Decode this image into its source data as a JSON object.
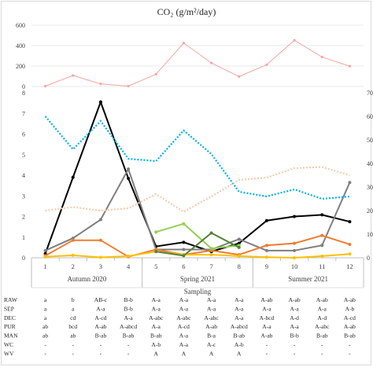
{
  "chart_data": [
    {
      "type": "line",
      "title": "CO₂ (g/m²/day)",
      "x": [
        1,
        2,
        3,
        4,
        5,
        6,
        7,
        8,
        9,
        10,
        11,
        12
      ],
      "ylim": [
        0,
        600
      ],
      "yticks": [
        0,
        200,
        400,
        600
      ],
      "grid": "horizontal",
      "series": [
        {
          "color": "#f4a6a0",
          "values": [
            3,
            107,
            25,
            3,
            120,
            425,
            230,
            97,
            213,
            452,
            288,
            198
          ]
        }
      ]
    },
    {
      "type": "line",
      "x": [
        1,
        2,
        3,
        4,
        5,
        6,
        7,
        8,
        9,
        10,
        11,
        12
      ],
      "xlabel": "Sampling",
      "xticks": [
        "1",
        "2",
        "3",
        "4",
        "5",
        "6",
        "7",
        "8",
        "9",
        "10",
        "11",
        "12"
      ],
      "groups": [
        "Autumn 2020",
        "Spring 2021",
        "Summer 2021"
      ],
      "ylim": [
        0,
        8
      ],
      "yticks": [
        0,
        1,
        2,
        3,
        4,
        5,
        6,
        7,
        8
      ],
      "y2lim": [
        0,
        70
      ],
      "y2ticks": [
        0,
        10,
        20,
        30,
        40,
        50,
        60,
        70
      ],
      "series": [
        {
          "color": "#000000",
          "marker": true,
          "values": [
            0.2,
            3.9,
            7.55,
            3.85,
            0.55,
            0.75,
            0.3,
            0.7,
            1.8,
            2.0,
            2.08,
            1.75
          ]
        },
        {
          "color": "#7f7f7f",
          "marker": true,
          "values": [
            0.35,
            0.95,
            1.85,
            4.3,
            0.4,
            0.4,
            0.4,
            0.9,
            0.35,
            0.35,
            0.6,
            3.65
          ]
        },
        {
          "color": "#ed7d31",
          "marker": true,
          "values": [
            0.1,
            0.85,
            0.85,
            0.05,
            0.4,
            0.15,
            0.35,
            0.15,
            0.6,
            0.7,
            1.08,
            0.65
          ]
        },
        {
          "color": "#ffc000",
          "marker": true,
          "values": [
            0.05,
            0.12,
            0.02,
            0.08,
            0.3,
            0.15,
            0.15,
            0.08,
            0.03,
            0.0,
            0.08,
            0.18
          ]
        },
        {
          "color": "#92d050",
          "marker": true,
          "values": [
            null,
            null,
            null,
            null,
            1.25,
            1.65,
            0.45,
            0.6,
            null,
            null,
            null,
            null
          ]
        },
        {
          "color": "#548235",
          "marker": true,
          "values": [
            null,
            null,
            null,
            null,
            0.3,
            0.1,
            1.2,
            0.5,
            null,
            null,
            null,
            null
          ]
        },
        {
          "color": "#00b0f0",
          "axis": "right",
          "dashed": true,
          "values": [
            60,
            46,
            58,
            42,
            41,
            54,
            44,
            28,
            26,
            29,
            25,
            26
          ]
        },
        {
          "color": "#f8cbad",
          "axis": "right",
          "dashed": true,
          "values": [
            20,
            21.5,
            20,
            21,
            27,
            19.5,
            26,
            33,
            34,
            38,
            38.5,
            35
          ]
        }
      ]
    }
  ],
  "table": {
    "rows": [
      {
        "label": "RAW",
        "cells": [
          "a",
          "b",
          "AB-c",
          "B-b",
          "A-a",
          "A-a",
          "A-a",
          "A-a",
          "A-ab",
          "A-ab",
          "A-ab",
          "A-ab"
        ]
      },
      {
        "label": "SEP",
        "cells": [
          "a",
          "a",
          "A-a",
          "B-b",
          "A-a",
          "A-a",
          "A-a",
          "A-a",
          "A-a",
          "A-a",
          "A-a",
          "A-b"
        ]
      },
      {
        "label": "DEC",
        "cells": [
          "a",
          "cd",
          "A-cd",
          "A-a",
          "A-abc",
          "A-abc",
          "A-abc",
          "A-a",
          "A-bcd",
          "A-d",
          "A-d",
          "A-cd"
        ]
      },
      {
        "label": "PUR",
        "cells": [
          "ab",
          "bcd",
          "A-ab",
          "A-abcd",
          "A-a",
          "A-cd",
          "A-ab",
          "A-abcd",
          "A-a",
          "A-a",
          "A-abc",
          "A-ab"
        ]
      },
      {
        "label": "MAN",
        "cells": [
          "ab",
          "ab",
          "B-ab",
          "B-ab",
          "B-ab",
          "A-a",
          "B-a",
          "B-ab",
          "A-ab",
          "B-b",
          "B-ab",
          "B-ab"
        ]
      },
      {
        "label": "WC",
        "cells": [
          "-",
          "-",
          "-",
          "-",
          "A-b",
          "A-a",
          "A-c",
          "A-b",
          "-",
          "-",
          "-",
          "-"
        ]
      },
      {
        "label": "WV",
        "cells": [
          "-",
          "-",
          "-",
          "-",
          "A",
          "A",
          "A",
          "A",
          "-",
          "-",
          "-",
          "-"
        ]
      }
    ]
  }
}
